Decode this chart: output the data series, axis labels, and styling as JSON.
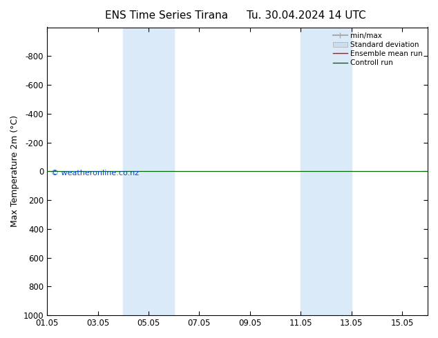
{
  "title_left": "ENS Time Series Tirana",
  "title_right": "Tu. 30.04.2024 14 UTC",
  "ylabel": "Max Temperature 2m (°C)",
  "ylim_bottom": 1000,
  "ylim_top": -1000,
  "yticks": [
    -800,
    -600,
    -400,
    -200,
    0,
    200,
    400,
    600,
    800,
    1000
  ],
  "xtick_labels": [
    "01.05",
    "03.05",
    "05.05",
    "07.05",
    "09.05",
    "11.05",
    "13.05",
    "15.05"
  ],
  "xtick_positions": [
    1,
    3,
    5,
    7,
    9,
    11,
    13,
    15
  ],
  "xlim": [
    1,
    16
  ],
  "shaded_bands": [
    {
      "x_start": 4.0,
      "x_end": 6.0
    },
    {
      "x_start": 11.0,
      "x_end": 13.0
    }
  ],
  "band_color": "#daeaf8",
  "ensemble_mean_y": 0.0,
  "control_run_y": 0.0,
  "ensemble_mean_color": "#dd0000",
  "control_run_color": "#006600",
  "minmax_line_color": "#aaaaaa",
  "stddev_fill_color": "#ccddee",
  "legend_entries": [
    "min/max",
    "Standard deviation",
    "Ensemble mean run",
    "Controll run"
  ],
  "watermark": "© weatheronline.co.nz",
  "watermark_color": "#0044cc",
  "background_color": "#ffffff",
  "title_fontsize": 11,
  "axis_label_fontsize": 9,
  "tick_fontsize": 8.5,
  "legend_fontsize": 7.5
}
